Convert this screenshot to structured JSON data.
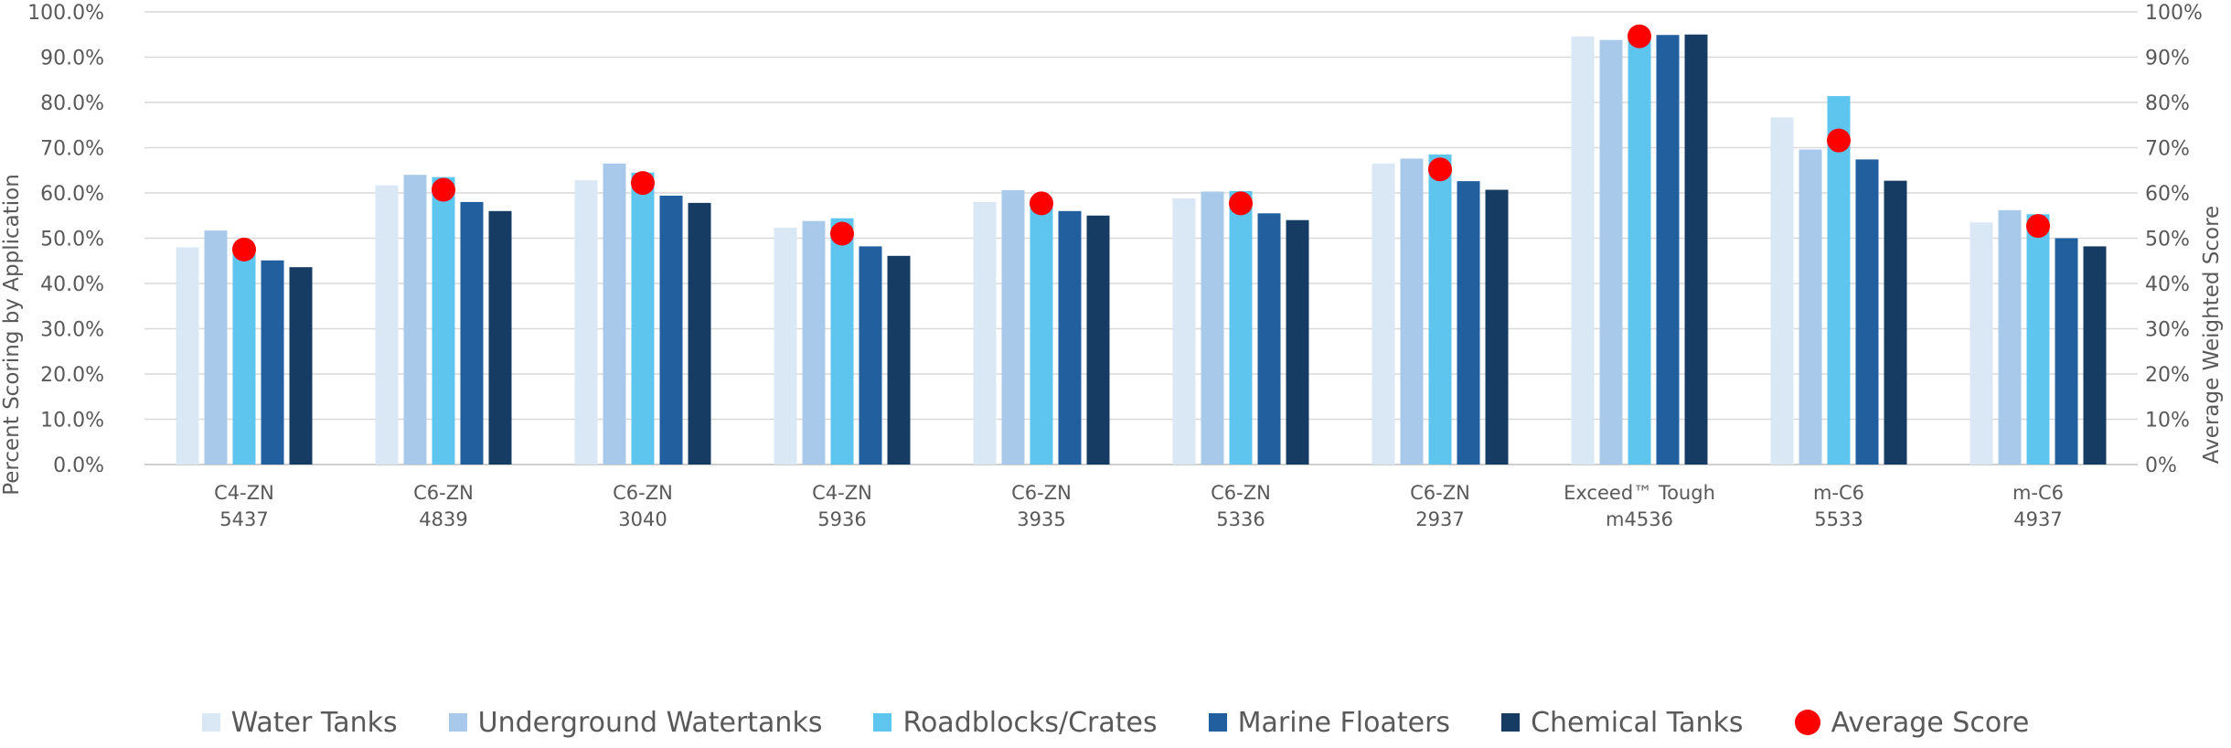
{
  "chart_data": {
    "type": "bar",
    "categories": [
      [
        "C4-ZN",
        "5437"
      ],
      [
        "C6-ZN",
        "4839"
      ],
      [
        "C6-ZN",
        "3040"
      ],
      [
        "C4-ZN",
        "5936"
      ],
      [
        "C6-ZN",
        "3935"
      ],
      [
        "C6-ZN",
        "5336"
      ],
      [
        "C6-ZN",
        "2937"
      ],
      [
        "Exceed™ Tough",
        "m4536"
      ],
      [
        "m-C6",
        "5533"
      ],
      [
        "m-C6",
        "4937"
      ]
    ],
    "series": [
      {
        "name": "Water Tanks",
        "color": "#dae8f6",
        "values": [
          48.0,
          61.7,
          62.8,
          52.3,
          58.0,
          58.8,
          66.5,
          94.6,
          76.7,
          53.5
        ]
      },
      {
        "name": "Underground Watertanks",
        "color": "#a9c9ea",
        "values": [
          51.7,
          64.0,
          66.5,
          53.8,
          60.6,
          60.3,
          67.6,
          93.8,
          69.6,
          56.2
        ]
      },
      {
        "name": "Roadblocks/Crates",
        "color": "#5ec5ee",
        "values": [
          47.5,
          63.5,
          64.5,
          54.4,
          58.0,
          60.4,
          68.5,
          94.3,
          81.4,
          55.3
        ]
      },
      {
        "name": "Marine Floaters",
        "color": "#225f9f",
        "values": [
          45.1,
          58.0,
          59.4,
          48.2,
          56.0,
          55.5,
          62.6,
          94.9,
          67.4,
          50.0
        ]
      },
      {
        "name": "Chemical Tanks",
        "color": "#163c63",
        "values": [
          43.6,
          56.0,
          57.8,
          46.1,
          55.0,
          54.0,
          60.7,
          95.0,
          62.7,
          48.2
        ]
      }
    ],
    "line_series": {
      "name": "Average Score",
      "color": "#fd0000",
      "values": [
        47.5,
        60.7,
        62.2,
        51.0,
        57.7,
        57.7,
        65.2,
        94.6,
        71.6,
        52.7
      ]
    },
    "y_left": {
      "label": "Percent Scoring by Application",
      "min": 0,
      "max": 100,
      "step": 10,
      "ticks": [
        "0.0%",
        "10.0%",
        "20.0%",
        "30.0%",
        "40.0%",
        "50.0%",
        "60.0%",
        "70.0%",
        "80.0%",
        "90.0%",
        "100.0%"
      ]
    },
    "y_right": {
      "label": "Average  Weighted Score",
      "min": 0,
      "max": 100,
      "step": 10,
      "ticks": [
        "0%",
        "10%",
        "20%",
        "30%",
        "40%",
        "50%",
        "60%",
        "70%",
        "80%",
        "90%",
        "100%"
      ]
    },
    "grid": true,
    "legend_position": "bottom"
  }
}
